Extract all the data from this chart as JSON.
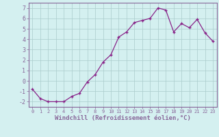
{
  "x": [
    0,
    1,
    2,
    3,
    4,
    5,
    6,
    7,
    8,
    9,
    10,
    11,
    12,
    13,
    14,
    15,
    16,
    17,
    18,
    19,
    20,
    21,
    22,
    23
  ],
  "y": [
    -0.8,
    -1.7,
    -2.0,
    -2.0,
    -2.0,
    -1.5,
    -1.2,
    -0.1,
    0.6,
    1.8,
    2.5,
    4.2,
    4.7,
    5.6,
    5.8,
    6.0,
    7.0,
    6.8,
    4.7,
    5.5,
    5.1,
    5.9,
    4.6,
    3.8
  ],
  "line_color": "#882288",
  "marker": "+",
  "bg_color": "#d4f0f0",
  "grid_color": "#aacccc",
  "axis_label": "Windchill (Refroidissement éolien,°C)",
  "xlim": [
    -0.5,
    23.5
  ],
  "ylim": [
    -2.5,
    7.5
  ],
  "yticks": [
    -2,
    -1,
    0,
    1,
    2,
    3,
    4,
    5,
    6,
    7
  ],
  "xticks": [
    0,
    1,
    2,
    3,
    4,
    5,
    6,
    7,
    8,
    9,
    10,
    11,
    12,
    13,
    14,
    15,
    16,
    17,
    18,
    19,
    20,
    21,
    22,
    23
  ],
  "spine_color": "#886699"
}
